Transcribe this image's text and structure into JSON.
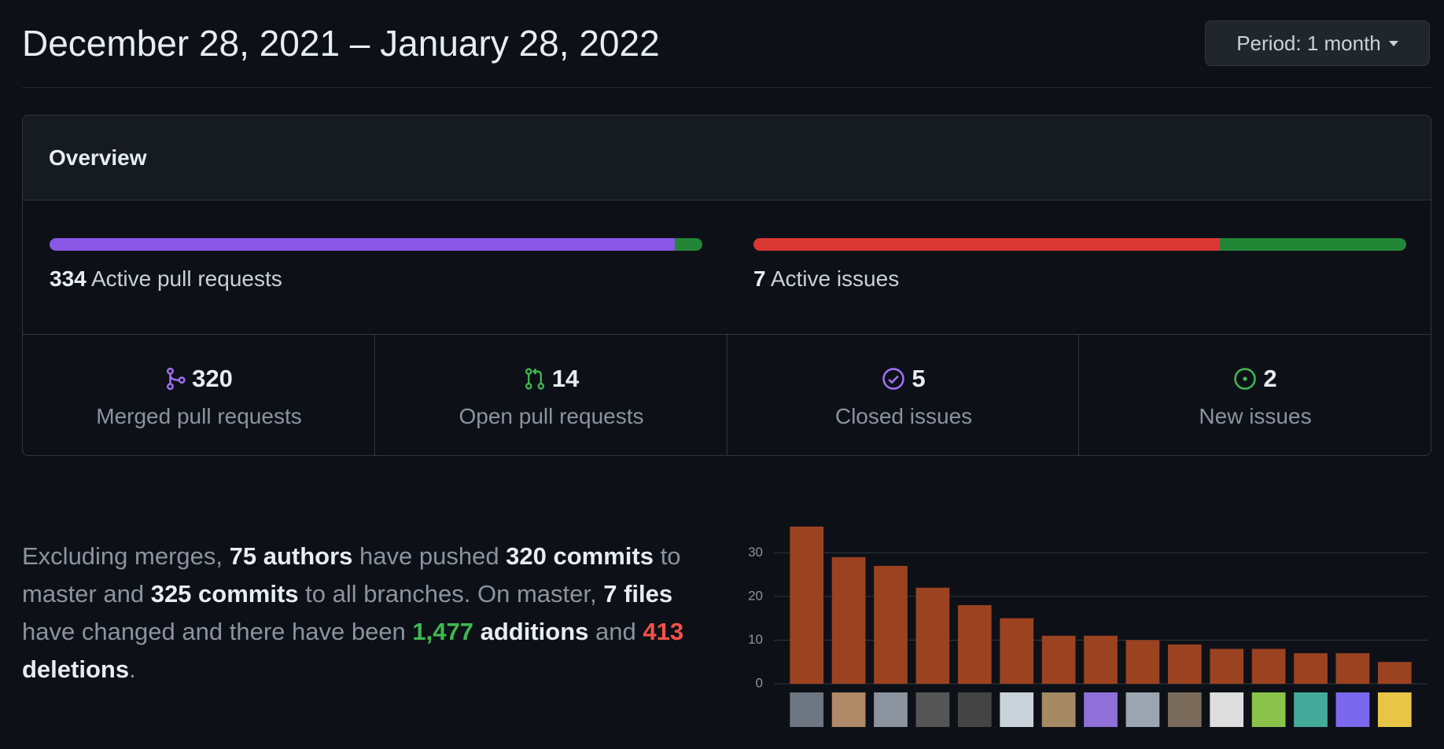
{
  "header": {
    "title": "December 28, 2021 – January 28, 2022",
    "period_button": "Period: 1 month"
  },
  "overview": {
    "title": "Overview",
    "active_prs": {
      "count": "334",
      "label": "Active pull requests",
      "merged": 320,
      "open": 14
    },
    "active_issues": {
      "count": "7",
      "label": "Active issues",
      "closed": 5,
      "new": 2
    },
    "stats": [
      {
        "count": "320",
        "label": "Merged pull requests"
      },
      {
        "count": "14",
        "label": "Open pull requests"
      },
      {
        "count": "5",
        "label": "Closed issues"
      },
      {
        "count": "2",
        "label": "New issues"
      }
    ]
  },
  "summary": [
    {
      "text": "Excluding merges, "
    },
    {
      "text": "75 authors",
      "bold": true
    },
    {
      "text": " have pushed "
    },
    {
      "text": "320 commits",
      "bold": true
    },
    {
      "text": " to master and "
    },
    {
      "text": "325 commits",
      "bold": true
    },
    {
      "text": " to all branches. On master, "
    },
    {
      "text": "7 files",
      "bold": true
    },
    {
      "text": " have changed and there have been "
    },
    {
      "text": "1,477",
      "bold": true,
      "color": "#3fb950"
    },
    {
      "text": " "
    },
    {
      "text": "additions",
      "bold": true
    },
    {
      "text": " and "
    },
    {
      "text": "413",
      "bold": true,
      "color": "#f85149"
    },
    {
      "text": " "
    },
    {
      "text": "deletions",
      "bold": true
    },
    {
      "text": "."
    }
  ],
  "chart_data": {
    "type": "bar",
    "values": [
      36,
      29,
      27,
      22,
      18,
      15,
      11,
      11,
      10,
      9,
      8,
      8,
      7,
      7,
      5
    ],
    "color": "#9b4221",
    "ylim": [
      0,
      36
    ],
    "yticks": [
      0,
      10,
      20,
      30
    ],
    "grid": true
  }
}
